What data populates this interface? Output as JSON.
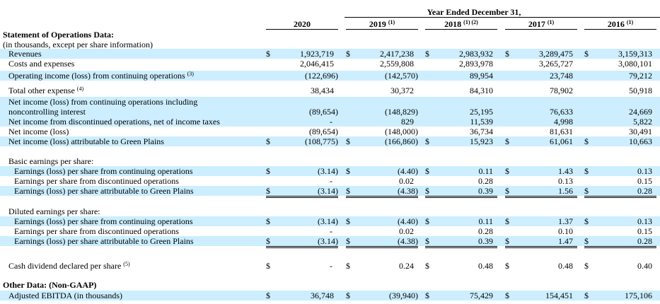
{
  "header": {
    "period": "Year Ended December 31,",
    "years": [
      {
        "year": "2020",
        "note": ""
      },
      {
        "year": "2019",
        "note": "(1)"
      },
      {
        "year": "2018",
        "note": "(1) (2)"
      },
      {
        "year": "2017",
        "note": "(1)"
      },
      {
        "year": "2016",
        "note": "(1)"
      }
    ]
  },
  "rows": [
    {
      "label": "Statement of Operations Data:",
      "bold": true
    },
    {
      "label": "(in thousands, except per share information)",
      "indent": 0
    },
    {
      "label": "Revenues",
      "indent": 1,
      "dollar": true,
      "values": [
        "1,923,719",
        "2,417,238",
        "2,983,932",
        "3,289,475",
        "3,159,313"
      ]
    },
    {
      "label": "Costs and expenses",
      "indent": 1,
      "values": [
        "2,046,415",
        "2,559,808",
        "2,893,978",
        "3,265,727",
        "3,080,101"
      ]
    },
    {
      "label": "Operating income (loss) from continuing operations",
      "note": "(3)",
      "indent": 1,
      "values": [
        "(122,696)",
        "(142,570)",
        "89,954",
        "23,748",
        "79,212"
      ]
    },
    {
      "label": "Total other expense",
      "note": "(4)",
      "indent": 1,
      "values": [
        "38,434",
        "30,372",
        "84,310",
        "78,902",
        "50,918"
      ]
    },
    {
      "label": "Net income (loss) from continuing operations including",
      "indent": 1
    },
    {
      "label": "noncontrolling interest",
      "indent": 1,
      "values": [
        "(89,654)",
        "(148,829)",
        "25,195",
        "76,633",
        "24,669"
      ]
    },
    {
      "label": "Net income from discontinued operations, net of income taxes",
      "indent": 1,
      "values": [
        "-",
        "829",
        "11,539",
        "4,998",
        "5,822"
      ]
    },
    {
      "label": "Net income (loss)",
      "indent": 1,
      "values": [
        "(89,654)",
        "(148,000)",
        "36,734",
        "81,631",
        "30,491"
      ]
    },
    {
      "label": "Net income (loss) attributable to Green Plains",
      "indent": 1,
      "dollar": true,
      "values": [
        "(108,775)",
        "(166,860)",
        "15,923",
        "61,061",
        "10,663"
      ]
    },
    {
      "label": "Basic earnings per share:",
      "indent": 1
    },
    {
      "label": "Earnings (loss) per share from continuing operations",
      "indent": 2,
      "dollar": true,
      "values": [
        "(3.14)",
        "(4.40)",
        "0.11",
        "1.43",
        "0.13"
      ]
    },
    {
      "label": "Earnings per share from discontinued operations",
      "indent": 2,
      "values": [
        "-",
        "0.02",
        "0.28",
        "0.13",
        "0.15"
      ]
    },
    {
      "label": "Earnings (loss) per share attributable to Green Plains",
      "indent": 2,
      "dollar": true,
      "values": [
        "(3.14)",
        "(4.38)",
        "0.39",
        "1.56",
        "0.28"
      ]
    },
    {
      "label": "Diluted earnings per share:",
      "indent": 1
    },
    {
      "label": "Earnings (loss) per share from continuing operations",
      "indent": 2,
      "dollar": true,
      "values": [
        "(3.14)",
        "(4.40)",
        "0.11",
        "1.37",
        "0.13"
      ]
    },
    {
      "label": "Earnings per share from discontinued operations",
      "indent": 2,
      "values": [
        "-",
        "0.02",
        "0.28",
        "0.10",
        "0.15"
      ]
    },
    {
      "label": "Earnings (loss) per share attributable to Green Plains",
      "indent": 2,
      "dollar": true,
      "values": [
        "(3.14)",
        "(4.38)",
        "0.39",
        "1.47",
        "0.28"
      ]
    },
    {
      "label": "Cash dividend declared per share",
      "note": "(5)",
      "indent": 1,
      "dollar": true,
      "values": [
        "-",
        "0.24",
        "0.48",
        "0.48",
        "0.40"
      ]
    },
    {
      "label": "Other Data: (Non-GAAP)",
      "bold": true
    },
    {
      "label": "Adjusted EBITDA (in thousands)",
      "indent": 1,
      "dollar": true,
      "values": [
        "36,748",
        "(39,940)",
        "75,429",
        "154,451",
        "175,106"
      ]
    }
  ]
}
